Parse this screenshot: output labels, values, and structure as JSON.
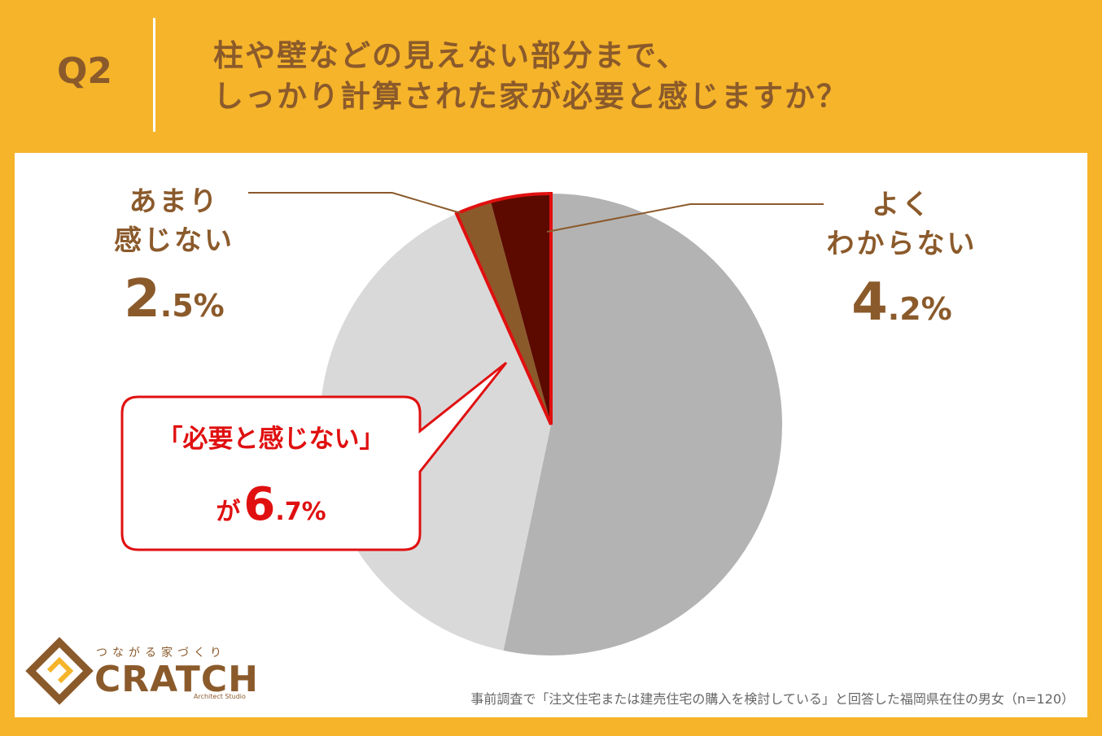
{
  "header": {
    "q_label": "Q2",
    "question_line1": "柱や壁などの見えない部分まで、",
    "question_line2": "しっかり計算された家が必要と感じますか？"
  },
  "chart_data": {
    "type": "pie",
    "start_angle_deg": 0,
    "direction": "clockwise",
    "slices": [
      {
        "value": 53.3,
        "color": "#B3B3B3"
      },
      {
        "value": 40.0,
        "color": "#D9D9D9"
      },
      {
        "label_line1": "あまり",
        "label_line2": "感じない",
        "value_int": "2",
        "value_dec": ".5%",
        "value": 2.5,
        "color": "#8B5A2B"
      },
      {
        "label_line1": "よく",
        "label_line2": "わからない",
        "value_int": "4",
        "value_dec": ".2%",
        "value": 4.2,
        "color": "#5C0A00"
      }
    ],
    "highlight_indices": [
      2,
      3
    ],
    "highlight_color": "#E01010",
    "callout": {
      "text": "「必要と感じない」",
      "prefix": "が",
      "value_int": "6",
      "value_dec": ".7%",
      "value": 6.7,
      "color": "#E01010"
    }
  },
  "logo": {
    "tagline": "つながる家づくり",
    "name": "CRATCH",
    "sub": "Architect Studio",
    "color": "#8B5A2B"
  },
  "footnote": "事前調査で「注文住宅または建売住宅の購入を検討している」と回答した福岡県在住の男女（n=120）"
}
